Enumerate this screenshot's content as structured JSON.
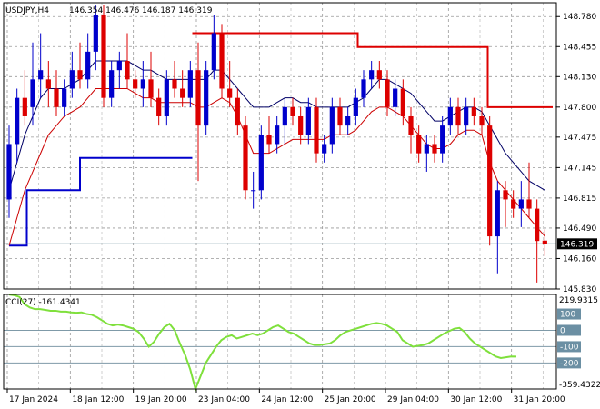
{
  "chart_data": [
    {
      "type": "candlestick",
      "symbol_timeframe": "USDJPY,H4",
      "ohlc_readout": "146.354 146.476 146.187 146.319",
      "ylim": [
        145.83,
        148.93
      ],
      "y_ticks": [
        148.78,
        148.455,
        148.13,
        147.8,
        147.475,
        147.145,
        146.815,
        146.49,
        146.16,
        145.83
      ],
      "y_tick_labels": [
        "148.780",
        "148.455",
        "148.130",
        "147.800",
        "147.475",
        "147.145",
        "146.815",
        "146.490",
        "146.160",
        "145.830"
      ],
      "current_price": 146.319,
      "current_price_label": "146.319",
      "x_labels": [
        "17 Jan 2024",
        "18 Jan 12:00",
        "19 Jan 20:00",
        "23 Jan 04:00",
        "24 Jan 12:00",
        "25 Jan 20:00",
        "29 Jan 04:00",
        "30 Jan 12:00",
        "31 Jan 20:00"
      ],
      "x_label_index": [
        0,
        8,
        16,
        24,
        32,
        40,
        48,
        56,
        64
      ],
      "candles": [
        [
          146.8,
          147.6,
          146.6,
          147.4
        ],
        [
          147.4,
          148.0,
          147.2,
          147.9
        ],
        [
          147.9,
          148.2,
          147.6,
          147.7
        ],
        [
          147.8,
          148.5,
          147.6,
          148.1
        ],
        [
          148.1,
          148.6,
          147.9,
          148.2
        ],
        [
          148.1,
          148.3,
          147.8,
          148.0
        ],
        [
          148.0,
          148.2,
          147.7,
          147.8
        ],
        [
          147.8,
          148.1,
          147.7,
          148.0
        ],
        [
          148.0,
          148.4,
          147.9,
          148.2
        ],
        [
          148.2,
          148.5,
          148.0,
          148.1
        ],
        [
          148.1,
          148.6,
          148.0,
          148.4
        ],
        [
          148.4,
          148.9,
          148.2,
          148.8
        ],
        [
          148.8,
          148.9,
          147.8,
          147.9
        ],
        [
          147.9,
          148.3,
          147.8,
          148.2
        ],
        [
          148.2,
          148.4,
          148.0,
          148.3
        ],
        [
          148.3,
          148.6,
          148.0,
          148.1
        ],
        [
          148.1,
          148.2,
          147.9,
          148.0
        ],
        [
          148.0,
          148.3,
          147.8,
          148.1
        ],
        [
          148.1,
          148.4,
          147.8,
          147.9
        ],
        [
          147.9,
          148.0,
          147.6,
          147.7
        ],
        [
          147.7,
          148.2,
          147.6,
          148.1
        ],
        [
          148.1,
          148.3,
          147.9,
          148.0
        ],
        [
          148.0,
          148.2,
          147.8,
          147.9
        ],
        [
          147.9,
          148.3,
          147.8,
          148.2
        ],
        [
          148.2,
          148.5,
          147.0,
          147.6
        ],
        [
          147.6,
          148.3,
          147.5,
          148.2
        ],
        [
          148.2,
          148.8,
          148.1,
          148.6
        ],
        [
          148.6,
          148.7,
          147.9,
          148.0
        ],
        [
          148.0,
          148.3,
          147.8,
          147.9
        ],
        [
          147.9,
          148.0,
          147.5,
          147.6
        ],
        [
          147.6,
          147.7,
          146.8,
          146.9
        ],
        [
          146.9,
          147.1,
          146.7,
          146.9
        ],
        [
          146.9,
          147.6,
          146.8,
          147.5
        ],
        [
          147.5,
          147.7,
          147.3,
          147.4
        ],
        [
          147.4,
          147.7,
          147.3,
          147.6
        ],
        [
          147.6,
          147.9,
          147.4,
          147.8
        ],
        [
          147.8,
          147.9,
          147.6,
          147.7
        ],
        [
          147.7,
          147.8,
          147.4,
          147.5
        ],
        [
          147.5,
          147.9,
          147.4,
          147.8
        ],
        [
          147.8,
          147.9,
          147.2,
          147.3
        ],
        [
          147.3,
          147.5,
          147.2,
          147.4
        ],
        [
          147.4,
          147.9,
          147.3,
          147.8
        ],
        [
          147.8,
          147.9,
          147.5,
          147.6
        ],
        [
          147.6,
          147.8,
          147.5,
          147.7
        ],
        [
          147.7,
          148.0,
          147.6,
          147.9
        ],
        [
          147.9,
          148.2,
          147.8,
          148.1
        ],
        [
          148.1,
          148.3,
          148.0,
          148.2
        ],
        [
          148.2,
          148.3,
          148.0,
          148.1
        ],
        [
          148.1,
          148.2,
          147.7,
          147.8
        ],
        [
          147.8,
          148.1,
          147.7,
          148.0
        ],
        [
          148.0,
          148.1,
          147.6,
          147.7
        ],
        [
          147.7,
          147.8,
          147.3,
          147.5
        ],
        [
          147.5,
          147.6,
          147.2,
          147.3
        ],
        [
          147.3,
          147.5,
          147.1,
          147.4
        ],
        [
          147.4,
          147.5,
          147.2,
          147.3
        ],
        [
          147.3,
          147.7,
          147.2,
          147.6
        ],
        [
          147.6,
          147.9,
          147.5,
          147.8
        ],
        [
          147.8,
          147.9,
          147.5,
          147.6
        ],
        [
          147.6,
          147.9,
          147.5,
          147.8
        ],
        [
          147.8,
          147.9,
          147.6,
          147.7
        ],
        [
          147.7,
          147.8,
          147.5,
          147.6
        ],
        [
          147.6,
          147.7,
          146.3,
          146.4
        ],
        [
          146.4,
          147.0,
          146.0,
          146.9
        ],
        [
          146.9,
          147.0,
          146.5,
          146.8
        ],
        [
          146.8,
          146.9,
          146.6,
          146.7
        ],
        [
          146.7,
          147.0,
          146.5,
          146.8
        ],
        [
          146.8,
          147.2,
          146.6,
          146.7
        ],
        [
          146.7,
          146.8,
          145.9,
          146.35
        ],
        [
          146.354,
          146.476,
          146.187,
          146.319
        ]
      ],
      "ma_black": [
        146.9,
        147.2,
        147.5,
        147.7,
        147.9,
        148.0,
        148.0,
        148.0,
        148.05,
        148.1,
        148.2,
        148.3,
        148.3,
        148.3,
        148.3,
        148.3,
        148.25,
        148.2,
        148.2,
        148.15,
        148.1,
        148.1,
        148.1,
        148.1,
        148.1,
        148.1,
        148.2,
        148.2,
        148.1,
        148.0,
        147.9,
        147.8,
        147.8,
        147.8,
        147.85,
        147.9,
        147.9,
        147.85,
        147.85,
        147.8,
        147.8,
        147.8,
        147.8,
        147.8,
        147.85,
        147.9,
        148.0,
        148.1,
        148.1,
        148.05,
        148.0,
        147.95,
        147.85,
        147.75,
        147.65,
        147.65,
        147.7,
        147.75,
        147.8,
        147.8,
        147.75,
        147.6,
        147.45,
        147.3,
        147.2,
        147.1,
        147.0,
        146.95,
        146.9
      ],
      "ma_red": [
        146.3,
        146.6,
        146.9,
        147.1,
        147.3,
        147.5,
        147.6,
        147.7,
        147.75,
        147.8,
        147.9,
        148.0,
        148.0,
        148.0,
        148.0,
        148.0,
        147.95,
        147.9,
        147.9,
        147.85,
        147.85,
        147.85,
        147.85,
        147.85,
        147.8,
        147.8,
        147.85,
        147.9,
        147.85,
        147.7,
        147.5,
        147.3,
        147.3,
        147.3,
        147.35,
        147.4,
        147.45,
        147.45,
        147.45,
        147.45,
        147.45,
        147.5,
        147.5,
        147.5,
        147.55,
        147.65,
        147.75,
        147.8,
        147.8,
        147.75,
        147.7,
        147.6,
        147.5,
        147.4,
        147.35,
        147.35,
        147.4,
        147.5,
        147.55,
        147.55,
        147.5,
        147.2,
        147.0,
        146.9,
        146.8,
        146.7,
        146.6,
        146.5,
        146.4
      ],
      "level_red": [
        {
          "from": 31,
          "to": 59,
          "value": 148.6
        },
        {
          "from": 59,
          "to": 75,
          "value": 148.45
        },
        {
          "from": 75,
          "to": 81,
          "value": 148.45
        },
        {
          "from": 81,
          "to": 92,
          "value": 147.8
        }
      ],
      "level_blue": [
        {
          "from": 0,
          "to": 3,
          "value": 146.3
        },
        {
          "from": 3,
          "to": 10,
          "value": 146.9
        },
        {
          "from": 10,
          "to": 12,
          "value": 146.9
        },
        {
          "from": 12,
          "to": 31,
          "value": 147.25
        }
      ]
    },
    {
      "type": "line",
      "indicator": "CCI(27) -161.4341",
      "ylim": [
        -359.4322,
        219.9315
      ],
      "scale_max_label": "219.9315",
      "scale_min_label": "-359.4322",
      "levels": [
        100,
        0,
        -100,
        -200
      ],
      "level_labels": [
        "100",
        "0",
        "-100",
        "-200"
      ],
      "values": [
        219,
        215,
        205,
        160,
        140,
        130,
        130,
        125,
        120,
        120,
        115,
        115,
        110,
        108,
        110,
        100,
        95,
        80,
        60,
        40,
        30,
        35,
        30,
        20,
        10,
        -10,
        -50,
        -100,
        -70,
        -20,
        20,
        40,
        0,
        -80,
        -150,
        -240,
        -360,
        -280,
        -200,
        -150,
        -100,
        -60,
        -40,
        -30,
        -50,
        -40,
        -30,
        -20,
        -30,
        -20,
        0,
        20,
        30,
        10,
        -10,
        -20,
        -40,
        -60,
        -80,
        -90,
        -90,
        -85,
        -80,
        -60,
        -30,
        -10,
        0,
        10,
        20,
        30,
        40,
        45,
        40,
        30,
        10,
        -10,
        -60,
        -80,
        -100,
        -95,
        -90,
        -80,
        -60,
        -40,
        -20,
        -5,
        10,
        15,
        -10,
        -50,
        -80,
        -100,
        -120,
        -140,
        -160,
        -170,
        -165,
        -160,
        -161
      ]
    }
  ]
}
